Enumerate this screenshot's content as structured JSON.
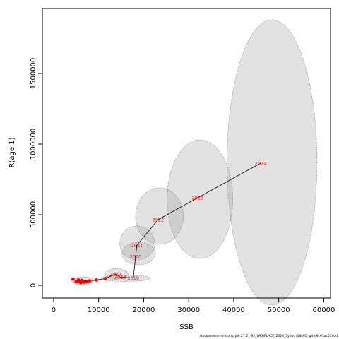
{
  "chart_data": {
    "type": "line",
    "xlabel": "SSB",
    "ylabel": "R(age 1)",
    "xlim": [
      -2500,
      61500
    ],
    "ylim": [
      -90000,
      1960000
    ],
    "x_ticks": [
      0,
      10000,
      20000,
      30000,
      40000,
      50000,
      60000
    ],
    "y_ticks": [
      0,
      500000,
      1000000,
      1500000
    ],
    "x_tick_labels": [
      "0",
      "10000",
      "20000",
      "30000",
      "40000",
      "50000",
      "60000"
    ],
    "y_tick_labels": [
      "0",
      "500000",
      "1000000",
      "1500000"
    ],
    "grid": false,
    "points": [
      {
        "year": "",
        "x": 4300,
        "y": 45000,
        "label": ""
      },
      {
        "year": "",
        "x": 5200,
        "y": 30000,
        "label": ""
      },
      {
        "year": "",
        "x": 6000,
        "y": 18000,
        "label": ""
      },
      {
        "year": "",
        "x": 5500,
        "y": 38000,
        "label": ""
      },
      {
        "year": "",
        "x": 6800,
        "y": 22000,
        "label": ""
      },
      {
        "year": "",
        "x": 5000,
        "y": 25000,
        "label": ""
      },
      {
        "year": "",
        "x": 7500,
        "y": 28000,
        "label": ""
      },
      {
        "year": "",
        "x": 6300,
        "y": 35000,
        "label": ""
      },
      {
        "year": "",
        "x": 8000,
        "y": 32000,
        "label": ""
      },
      {
        "year": "",
        "x": 9500,
        "y": 38000,
        "label": ""
      },
      {
        "year": "",
        "x": 11500,
        "y": 48000,
        "label": ""
      },
      {
        "year": "2017",
        "x": 13800,
        "y": 80000,
        "label": "2017"
      },
      {
        "year": "2018",
        "x": 14800,
        "y": 58000,
        "label": "2018"
      },
      {
        "year": "2019",
        "x": 17700,
        "y": 52000,
        "label": "2019"
      },
      {
        "year": "2020",
        "x": 18200,
        "y": 205000,
        "label": "2020"
      },
      {
        "year": "2021",
        "x": 18500,
        "y": 285000,
        "label": "2021"
      },
      {
        "year": "2022",
        "x": 23200,
        "y": 465000,
        "label": "2022"
      },
      {
        "year": "2023",
        "x": 32000,
        "y": 620000,
        "label": "2023"
      },
      {
        "year": "2024",
        "x": 46000,
        "y": 865000,
        "label": "2024"
      }
    ],
    "ellipses": [
      {
        "cx": 6500,
        "cy": 35000,
        "rx": 2500,
        "ry": 25000
      },
      {
        "cx": 14000,
        "cy": 80000,
        "rx": 2500,
        "ry": 38000
      },
      {
        "cx": 16000,
        "cy": 50000,
        "rx": 5500,
        "ry": 22000
      },
      {
        "cx": 18900,
        "cy": 225000,
        "rx": 3700,
        "ry": 80000
      },
      {
        "cx": 18600,
        "cy": 300000,
        "rx": 3900,
        "ry": 120000
      },
      {
        "cx": 23500,
        "cy": 490000,
        "rx": 5300,
        "ry": 200000
      },
      {
        "cx": 32500,
        "cy": 610000,
        "rx": 7300,
        "ry": 420000
      },
      {
        "cx": 48500,
        "cy": 870000,
        "rx": 10000,
        "ry": 1010000
      }
    ]
  },
  "footnote": "stockassessment.org, ple.27.21-32_WKBPLACE_2024_5ysw, r18465, git:c9c61ac53a0d"
}
